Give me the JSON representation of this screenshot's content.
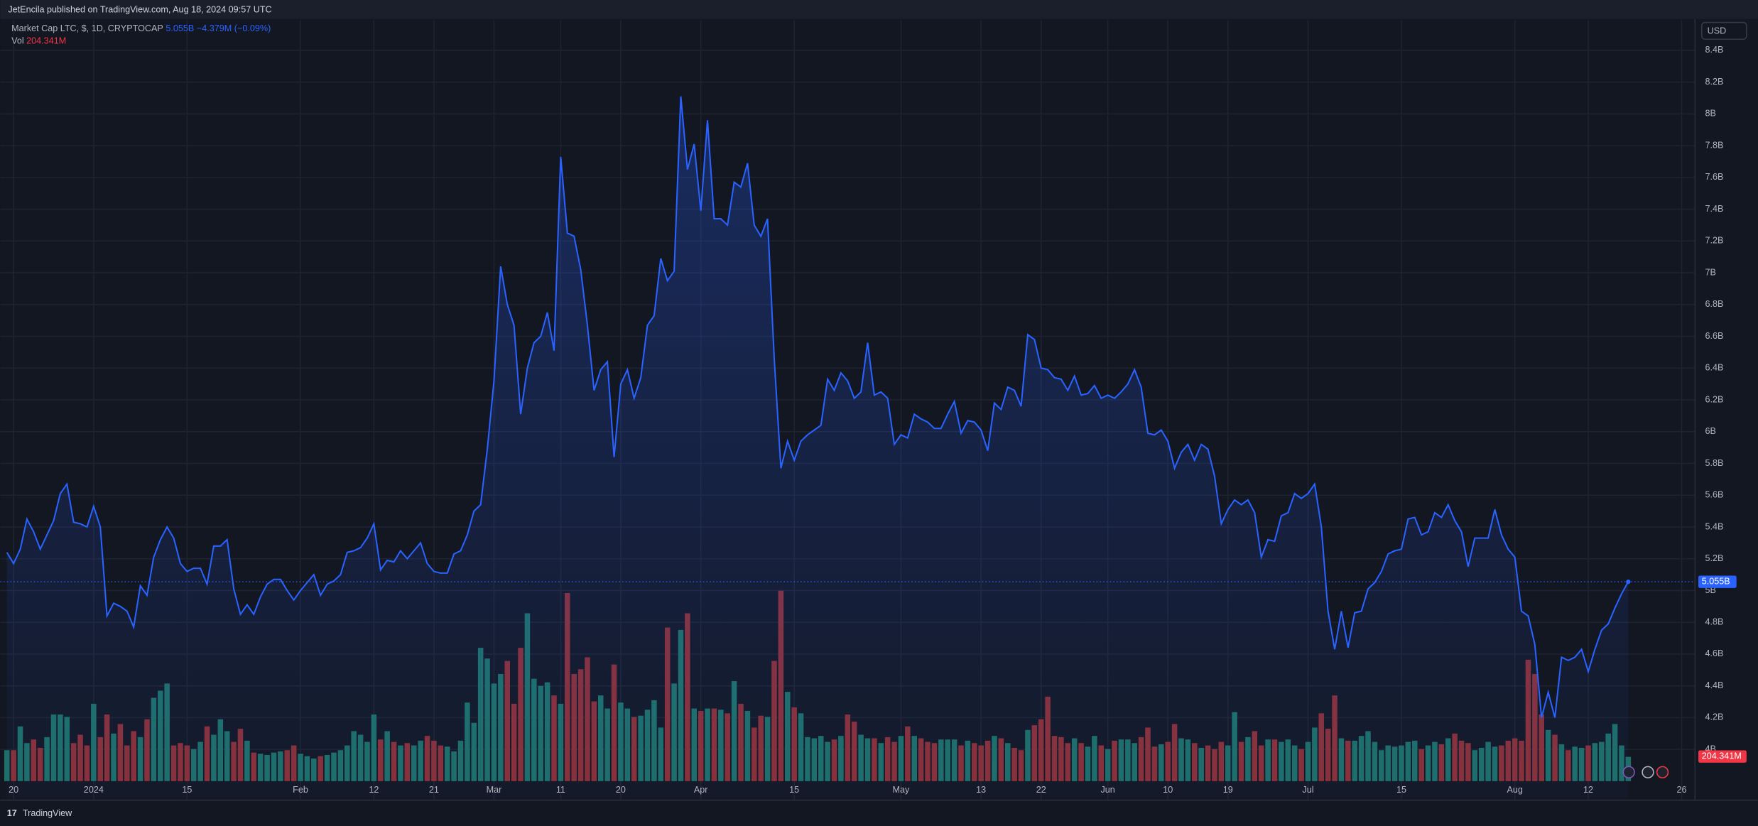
{
  "header": {
    "publisher": "JetEncila published on TradingView.com, Aug 18, 2024 09:57 UTC",
    "currency": "USD",
    "brand": "TradingView"
  },
  "chart_data": {
    "type": "line",
    "title": "Market Cap LTC, $, 1D, CRYPTOCAP",
    "grid": true,
    "xlim": [
      -1,
      253
    ],
    "ylim": [
      3.68,
      8.59
    ],
    "xticks": [
      {
        "value": 1,
        "label": "20"
      },
      {
        "value": 13,
        "label": "2024"
      },
      {
        "value": 27,
        "label": "15"
      },
      {
        "value": 44,
        "label": "Feb"
      },
      {
        "value": 55,
        "label": "12"
      },
      {
        "value": 64,
        "label": "21"
      },
      {
        "value": 73,
        "label": "Mar"
      },
      {
        "value": 83,
        "label": "11"
      },
      {
        "value": 92,
        "label": "20"
      },
      {
        "value": 104,
        "label": "Apr"
      },
      {
        "value": 118,
        "label": "15"
      },
      {
        "value": 134,
        "label": "May"
      },
      {
        "value": 146,
        "label": "13"
      },
      {
        "value": 155,
        "label": "22"
      },
      {
        "value": 165,
        "label": "Jun"
      },
      {
        "value": 174,
        "label": "10"
      },
      {
        "value": 183,
        "label": "19"
      },
      {
        "value": 195,
        "label": "Jul"
      },
      {
        "value": 209,
        "label": "15"
      },
      {
        "value": 226,
        "label": "Aug"
      },
      {
        "value": 237,
        "label": "12"
      },
      {
        "value": 251,
        "label": "26"
      }
    ],
    "yticks": [
      {
        "value": 8.4,
        "label": "8.4B"
      },
      {
        "value": 8.2,
        "label": "8.2B"
      },
      {
        "value": 8,
        "label": "8B"
      },
      {
        "value": 7.8,
        "label": "7.8B"
      },
      {
        "value": 7.6,
        "label": "7.6B"
      },
      {
        "value": 7.4,
        "label": "7.4B"
      },
      {
        "value": 7.2,
        "label": "7.2B"
      },
      {
        "value": 7,
        "label": "7B"
      },
      {
        "value": 6.8,
        "label": "6.8B"
      },
      {
        "value": 6.6,
        "label": "6.6B"
      },
      {
        "value": 6.4,
        "label": "6.4B"
      },
      {
        "value": 6.2,
        "label": "6.2B"
      },
      {
        "value": 6,
        "label": "6B"
      },
      {
        "value": 5.8,
        "label": "5.8B"
      },
      {
        "value": 5.6,
        "label": "5.6B"
      },
      {
        "value": 5.4,
        "label": "5.4B"
      },
      {
        "value": 5.2,
        "label": "5.2B"
      },
      {
        "value": 5,
        "label": "5B"
      },
      {
        "value": 4.8,
        "label": "4.8B"
      },
      {
        "value": 4.6,
        "label": "4.6B"
      },
      {
        "value": 4.4,
        "label": "4.4B"
      },
      {
        "value": 4.2,
        "label": "4.2B"
      },
      {
        "value": 4,
        "label": "4B"
      }
    ],
    "series": [
      {
        "name": "Market Cap LTC, $, 1D, CRYPTOCAP",
        "color": "#2962ff",
        "last_label": "5.055B",
        "change_label": "−4.379M (−0.09%)",
        "values": [
          5.24,
          5.17,
          5.26,
          5.45,
          5.37,
          5.26,
          5.35,
          5.44,
          5.61,
          5.67,
          5.43,
          5.42,
          5.4,
          5.53,
          5.4,
          4.84,
          4.92,
          4.9,
          4.87,
          4.77,
          5.03,
          4.97,
          5.21,
          5.32,
          5.4,
          5.33,
          5.17,
          5.12,
          5.14,
          5.14,
          5.04,
          5.28,
          5.28,
          5.32,
          5.01,
          4.85,
          4.91,
          4.85,
          4.96,
          5.04,
          5.07,
          5.07,
          5.0,
          4.94,
          5.0,
          5.05,
          5.1,
          4.97,
          5.04,
          5.06,
          5.1,
          5.24,
          5.25,
          5.27,
          5.33,
          5.42,
          5.13,
          5.19,
          5.18,
          5.25,
          5.2,
          5.25,
          5.3,
          5.17,
          5.12,
          5.11,
          5.11,
          5.23,
          5.25,
          5.35,
          5.5,
          5.54,
          5.89,
          6.32,
          7.04,
          6.8,
          6.67,
          6.11,
          6.4,
          6.56,
          6.6,
          6.75,
          6.51,
          7.73,
          7.25,
          7.23,
          7.02,
          6.67,
          6.26,
          6.39,
          6.44,
          5.84,
          6.3,
          6.39,
          6.21,
          6.34,
          6.67,
          6.73,
          7.09,
          6.95,
          7.01,
          8.11,
          7.65,
          7.81,
          7.39,
          7.96,
          7.34,
          7.34,
          7.3,
          7.57,
          7.54,
          7.69,
          7.3,
          7.23,
          7.34,
          6.46,
          5.77,
          5.94,
          5.82,
          5.94,
          5.98,
          6.01,
          6.04,
          6.33,
          6.26,
          6.37,
          6.32,
          6.21,
          6.25,
          6.56,
          6.23,
          6.25,
          6.21,
          5.92,
          5.98,
          5.96,
          6.11,
          6.08,
          6.06,
          6.02,
          6.02,
          6.11,
          6.19,
          5.99,
          6.07,
          6.06,
          6.01,
          5.88,
          6.18,
          6.14,
          6.28,
          6.26,
          6.16,
          6.61,
          6.58,
          6.4,
          6.39,
          6.34,
          6.33,
          6.26,
          6.35,
          6.23,
          6.24,
          6.29,
          6.21,
          6.23,
          6.21,
          6.25,
          6.3,
          6.39,
          6.28,
          5.99,
          5.98,
          6.01,
          5.94,
          5.77,
          5.87,
          5.92,
          5.82,
          5.92,
          5.89,
          5.72,
          5.42,
          5.51,
          5.57,
          5.54,
          5.57,
          5.49,
          5.21,
          5.32,
          5.31,
          5.47,
          5.49,
          5.61,
          5.58,
          5.61,
          5.67,
          5.4,
          4.87,
          4.63,
          4.87,
          4.64,
          4.86,
          4.87,
          5.01,
          5.05,
          5.12,
          5.23,
          5.25,
          5.26,
          5.45,
          5.46,
          5.35,
          5.37,
          5.49,
          5.46,
          5.54,
          5.44,
          5.37,
          5.15,
          5.33,
          5.33,
          5.33,
          5.51,
          5.35,
          5.26,
          5.21,
          4.87,
          4.84,
          4.66,
          4.2,
          4.36,
          4.2,
          4.58,
          4.56,
          4.58,
          4.63,
          4.49,
          4.63,
          4.75,
          4.79,
          4.89,
          4.98,
          5.055
        ]
      },
      {
        "name": "Vol",
        "axis": "volume",
        "up_color": "#1e6f67",
        "down_color": "#8b2f35",
        "last_label": "204.341M",
        "values": [
          260,
          260,
          460,
          320,
          350,
          280,
          370,
          560,
          560,
          540,
          320,
          390,
          300,
          650,
          370,
          560,
          400,
          480,
          300,
          420,
          370,
          520,
          700,
          760,
          820,
          300,
          320,
          300,
          270,
          330,
          460,
          390,
          520,
          420,
          330,
          440,
          340,
          240,
          230,
          220,
          240,
          250,
          260,
          300,
          230,
          210,
          190,
          210,
          220,
          240,
          260,
          300,
          420,
          390,
          330,
          560,
          350,
          420,
          330,
          300,
          320,
          300,
          340,
          380,
          340,
          300,
          290,
          250,
          340,
          660,
          490,
          1120,
          1030,
          820,
          900,
          1010,
          650,
          1120,
          1410,
          860,
          800,
          830,
          720,
          650,
          1580,
          900,
          940,
          1040,
          670,
          720,
          610,
          980,
          660,
          610,
          540,
          550,
          600,
          680,
          450,
          1290,
          820,
          1270,
          1410,
          610,
          590,
          610,
          610,
          600,
          570,
          840,
          650,
          590,
          450,
          550,
          540,
          1010,
          1600,
          750,
          620,
          570,
          370,
          360,
          380,
          330,
          350,
          380,
          560,
          500,
          390,
          360,
          360,
          320,
          370,
          330,
          380,
          460,
          380,
          360,
          330,
          320,
          350,
          350,
          350,
          300,
          340,
          320,
          300,
          340,
          380,
          360,
          320,
          280,
          260,
          430,
          470,
          520,
          710,
          380,
          370,
          320,
          360,
          320,
          290,
          380,
          300,
          270,
          340,
          350,
          350,
          320,
          370,
          450,
          290,
          310,
          330,
          480,
          360,
          350,
          320,
          280,
          300,
          270,
          330,
          300,
          580,
          330,
          370,
          420,
          300,
          350,
          350,
          330,
          350,
          300,
          270,
          330,
          450,
          570,
          440,
          720,
          360,
          340,
          340,
          380,
          420,
          330,
          260,
          300,
          290,
          300,
          330,
          340,
          270,
          300,
          330,
          310,
          360,
          400,
          340,
          320,
          260,
          280,
          330,
          290,
          300,
          340,
          360,
          340,
          1020,
          900,
          560,
          430,
          390,
          310,
          260,
          290,
          280,
          300,
          320,
          330,
          400,
          480,
          300,
          204.341
        ]
      }
    ]
  }
}
